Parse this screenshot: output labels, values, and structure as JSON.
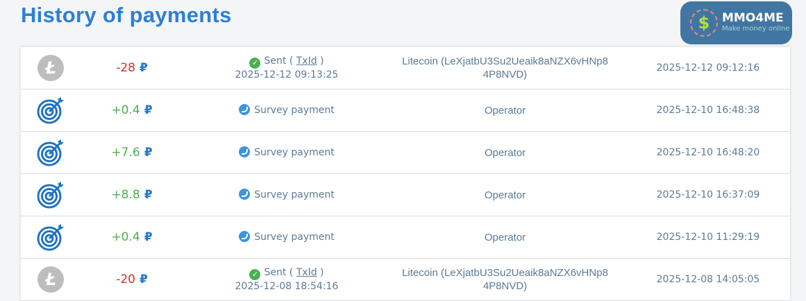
{
  "title": "History of payments",
  "currency": "₽",
  "rows": [
    {
      "icon": "litecoin-icon",
      "amount": "-28",
      "type": "neg",
      "status": "Sent",
      "status_link": "TxId",
      "status_date": "2025-12-12 09:13:25",
      "details": "Litecoin (LeXjatbU3Su2Ueaik8aNZX6vHNp8",
      "details2": "4P8NVD)",
      "date": "2025-12-12 09:12:16"
    },
    {
      "icon": "target-icon",
      "amount": "+0.4",
      "type": "pos",
      "status": "Survey payment",
      "details": "Operator",
      "date": "2025-12-10 16:48:38"
    },
    {
      "icon": "target-icon",
      "amount": "+7.6",
      "type": "pos",
      "status": "Survey payment",
      "details": "Operator",
      "date": "2025-12-10 16:48:20"
    },
    {
      "icon": "target-icon",
      "amount": "+8.8",
      "type": "pos",
      "status": "Survey payment",
      "details": "Operator",
      "date": "2025-12-10 16:37:09"
    },
    {
      "icon": "target-icon",
      "amount": "+0.4",
      "type": "pos",
      "status": "Survey payment",
      "details": "Operator",
      "date": "2025-12-10 11:29:19"
    },
    {
      "icon": "litecoin-icon",
      "amount": "-20",
      "type": "neg",
      "status": "Sent",
      "status_link": "TxId",
      "status_date": "2025-12-08 18:54:16",
      "details": "Litecoin (LeXjatbU3Su2Ueaik8aNZX6vHNp8",
      "details2": "4P8NVD)",
      "date": "2025-12-08 14:05:05"
    }
  ],
  "watermark": {
    "name": "MMO4ME",
    "tagline": "Make money online"
  }
}
